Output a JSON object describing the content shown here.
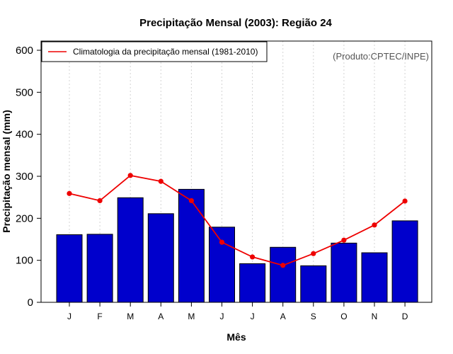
{
  "chart_data": {
    "type": "bar",
    "title": "Precipitação Mensal (2003): Região 24",
    "xlabel": "Mês",
    "ylabel": "Precipitação mensal (mm)",
    "ylim": [
      0,
      600
    ],
    "yticks": [
      0,
      100,
      200,
      300,
      400,
      500,
      600
    ],
    "categories": [
      "J",
      "F",
      "M",
      "A",
      "M",
      "J",
      "J",
      "A",
      "S",
      "O",
      "N",
      "D"
    ],
    "series": [
      {
        "name": "Precipitação mensal 2003",
        "type": "bar",
        "color": "#0000cc",
        "values": [
          161,
          162,
          249,
          211,
          269,
          179,
          92,
          131,
          87,
          141,
          118,
          194
        ]
      },
      {
        "name": "Climatologia da precipitação mensal (1981-2010)",
        "type": "line",
        "color": "#ee0000",
        "values": [
          259,
          242,
          302,
          288,
          242,
          143,
          108,
          88,
          116,
          148,
          184,
          241
        ]
      }
    ],
    "legend": {
      "position": "top-left",
      "label": "Climatologia da precipitação mensal (1981-2010)"
    },
    "grid": {
      "vertical": true,
      "horizontal": false
    },
    "credit": "(Produto:CPTEC/INPE)"
  }
}
